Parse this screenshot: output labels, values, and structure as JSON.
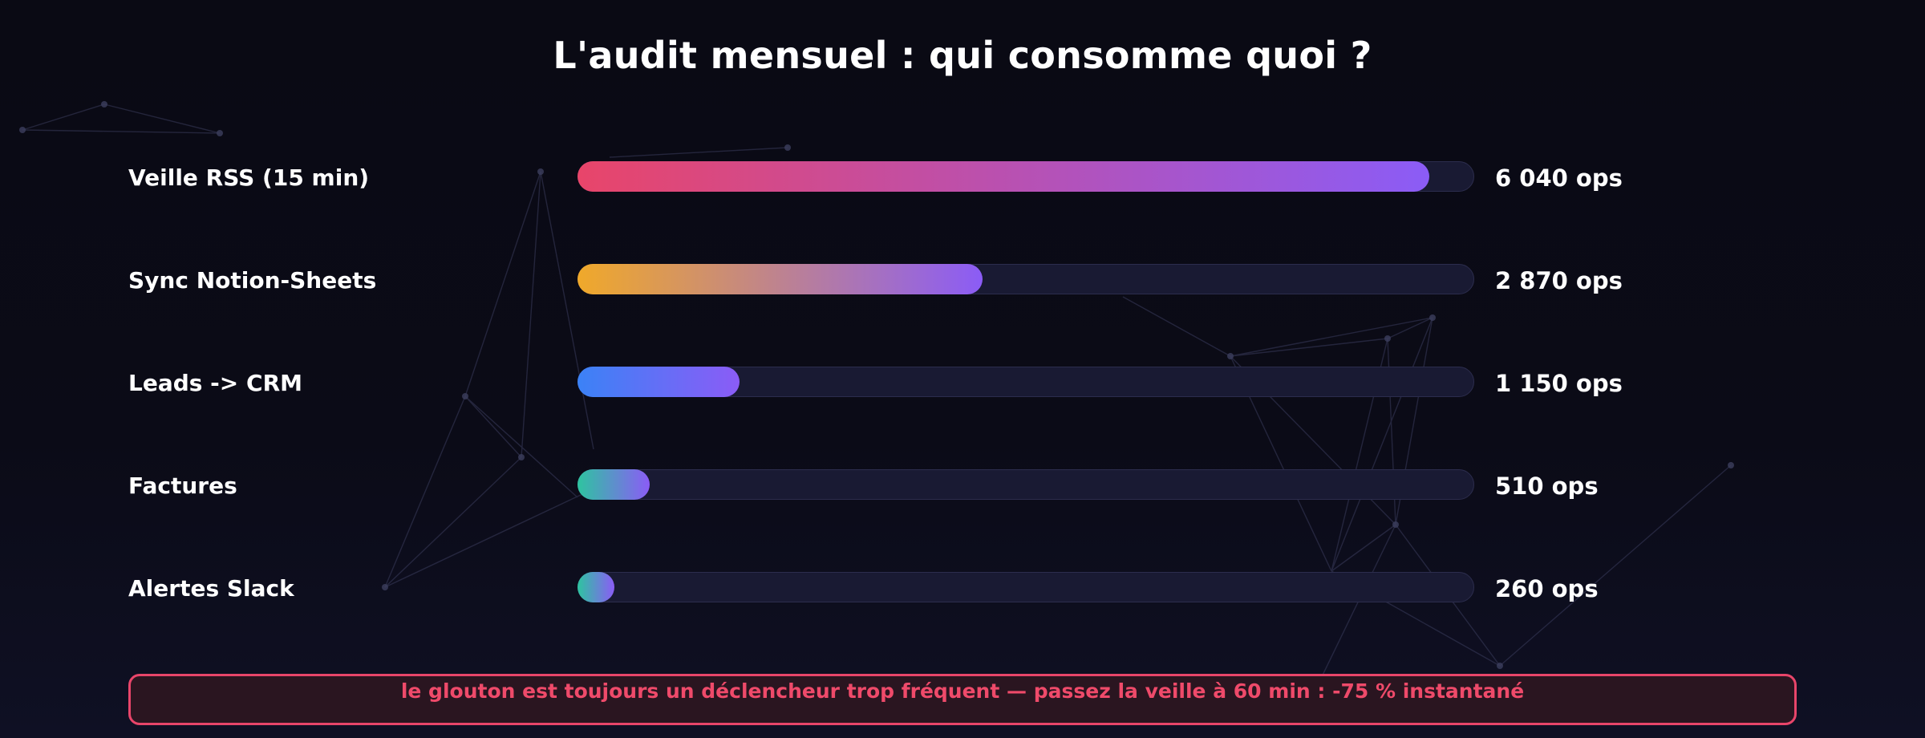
{
  "chart_data": {
    "type": "bar",
    "orientation": "horizontal",
    "title": "L'audit mensuel : qui consomme quoi ?",
    "categories": [
      "Veille RSS (15 min)",
      "Sync Notion-Sheets",
      "Leads -> CRM",
      "Factures",
      "Alertes Slack"
    ],
    "values": [
      6040,
      2870,
      1150,
      510,
      260
    ],
    "value_labels": [
      "6 040 ops",
      "2 870 ops",
      "1 150 ops",
      "510 ops",
      "260 ops"
    ],
    "xlim": [
      0,
      6360
    ],
    "grid": false,
    "bar_gradients": [
      [
        "#e8456a",
        "#8b5cf6"
      ],
      [
        "#f0a92a",
        "#8b5cf6"
      ],
      [
        "#3b82f6",
        "#8b5cf6"
      ],
      [
        "#2ec4a0",
        "#8b5cf6"
      ],
      [
        "#2ec4a0",
        "#8b5cf6"
      ]
    ],
    "track_color": "#191a33"
  },
  "callout": {
    "text": "le glouton est toujours un déclencheur trop fréquent — passez la veille à 60 min : -75 % instantané",
    "border_color": "#e8456a",
    "text_color": "#ef4a6a"
  }
}
